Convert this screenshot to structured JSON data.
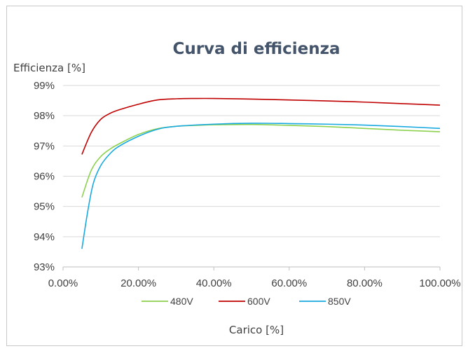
{
  "chart_data": {
    "type": "line",
    "title": "Curva di efficienza",
    "ylabel": "Efficienza [%]",
    "xlabel": "Carico [%]",
    "x_ticks": [
      "0.00%",
      "20.00%",
      "40.00%",
      "60.00%",
      "80.00%",
      "100.00%"
    ],
    "y_ticks": [
      "93%",
      "94%",
      "95%",
      "96%",
      "97%",
      "98%",
      "99%"
    ],
    "xlim": [
      0,
      100
    ],
    "ylim": [
      93,
      99
    ],
    "grid": "horizontal",
    "legend_position": "bottom",
    "series": [
      {
        "name": "480V",
        "color": "#8dd14f",
        "x": [
          5,
          7.5,
          10,
          12.5,
          15,
          20,
          25,
          30,
          35,
          40,
          50,
          60,
          70,
          80,
          90,
          100
        ],
        "y": [
          95.3,
          96.2,
          96.65,
          96.9,
          97.08,
          97.38,
          97.57,
          97.65,
          97.68,
          97.7,
          97.71,
          97.68,
          97.64,
          97.58,
          97.52,
          97.47
        ]
      },
      {
        "name": "600V",
        "color": "#c00000",
        "x": [
          5,
          7.5,
          10,
          12.5,
          15,
          20,
          25,
          30,
          35,
          40,
          50,
          60,
          70,
          80,
          90,
          100
        ],
        "y": [
          96.72,
          97.45,
          97.88,
          98.08,
          98.2,
          98.38,
          98.52,
          98.56,
          98.57,
          98.57,
          98.55,
          98.52,
          98.49,
          98.45,
          98.4,
          98.35
        ]
      },
      {
        "name": "850V",
        "color": "#18a9e0",
        "x": [
          5,
          6.5,
          8,
          10,
          12.5,
          15,
          20,
          25,
          30,
          40,
          50,
          60,
          70,
          80,
          90,
          100
        ],
        "y": [
          93.6,
          94.8,
          95.75,
          96.35,
          96.75,
          97.0,
          97.32,
          97.55,
          97.65,
          97.72,
          97.75,
          97.74,
          97.72,
          97.69,
          97.64,
          97.58
        ]
      }
    ]
  }
}
